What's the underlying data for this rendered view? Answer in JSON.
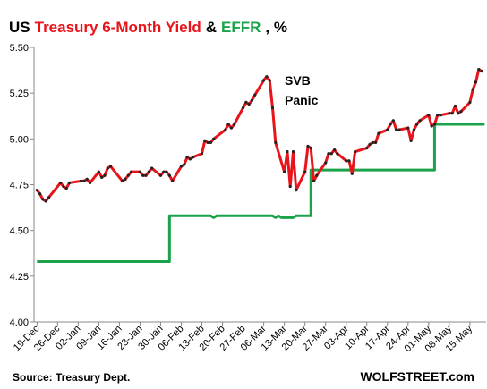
{
  "chart_data": {
    "type": "line",
    "title": [
      {
        "text": "US",
        "color": "#000000"
      },
      {
        "text": "Treasury 6-Month Yield",
        "color": "#e8141b"
      },
      {
        "text": "&",
        "color": "#000000"
      },
      {
        "text": "EFFR",
        "color": "#1aa34a"
      },
      {
        "text": ", %",
        "color": "#000000"
      }
    ],
    "annotations": {
      "event": [
        "SVB",
        "Panic"
      ],
      "source": "Source: Treasury Dept.",
      "credit": "WOLFSTREET.com"
    },
    "xlim": [
      -1,
      152.5
    ],
    "xticks": [
      {
        "value": 0,
        "label": "19-Dec"
      },
      {
        "value": 7,
        "label": "26-Dec"
      },
      {
        "value": 14,
        "label": "02-Jan"
      },
      {
        "value": 21,
        "label": "09-Jan"
      },
      {
        "value": 28,
        "label": "16-Jan"
      },
      {
        "value": 35,
        "label": "23-Jan"
      },
      {
        "value": 42,
        "label": "30-Jan"
      },
      {
        "value": 49,
        "label": "06-Feb"
      },
      {
        "value": 56,
        "label": "13-Feb"
      },
      {
        "value": 63,
        "label": "20-Feb"
      },
      {
        "value": 70,
        "label": "27-Feb"
      },
      {
        "value": 77,
        "label": "06-Mar"
      },
      {
        "value": 84,
        "label": "13-Mar"
      },
      {
        "value": 91,
        "label": "20-Mar"
      },
      {
        "value": 98,
        "label": "27-Mar"
      },
      {
        "value": 105,
        "label": "03-Apr"
      },
      {
        "value": 112,
        "label": "10-Apr"
      },
      {
        "value": 119,
        "label": "17-Apr"
      },
      {
        "value": 126,
        "label": "24-Apr"
      },
      {
        "value": 133,
        "label": "01-May"
      },
      {
        "value": 140,
        "label": "08-May"
      },
      {
        "value": 147,
        "label": "15-May"
      }
    ],
    "ylim": [
      4.0,
      5.5
    ],
    "yticks": [
      {
        "value": 4.0,
        "label": "4.00"
      },
      {
        "value": 4.25,
        "label": "4.25"
      },
      {
        "value": 4.5,
        "label": "4.50"
      },
      {
        "value": 4.75,
        "label": "4.75"
      },
      {
        "value": 5.0,
        "label": "5.00"
      },
      {
        "value": 5.25,
        "label": "5.25"
      },
      {
        "value": 5.5,
        "label": "5.50"
      }
    ],
    "grid": false,
    "series": [
      {
        "name": "EFFR",
        "color": "#1aa34a",
        "markers": false,
        "x": [
          0,
          45,
          45,
          59,
          60,
          61,
          80,
          81,
          82,
          83,
          87,
          88,
          93,
          93,
          135,
          135,
          152
        ],
        "values": [
          4.33,
          4.33,
          4.58,
          4.58,
          4.57,
          4.58,
          4.58,
          4.57,
          4.58,
          4.57,
          4.57,
          4.58,
          4.58,
          4.83,
          4.83,
          5.08,
          5.08
        ]
      },
      {
        "name": "Treasury 6-Month Yield",
        "color": "#e8141b",
        "markers": true,
        "x": [
          0,
          1,
          2,
          3,
          4,
          8,
          9,
          10,
          11,
          15,
          16,
          17,
          18,
          21,
          22,
          23,
          24,
          25,
          29,
          30,
          31,
          32,
          35,
          36,
          37,
          38,
          39,
          42,
          43,
          44,
          45,
          46,
          49,
          50,
          51,
          52,
          53,
          56,
          57,
          58,
          59,
          60,
          64,
          65,
          66,
          67,
          70,
          71,
          72,
          73,
          74,
          77,
          78,
          79,
          80,
          81,
          84,
          85,
          86,
          87,
          88,
          91,
          92,
          93,
          94,
          95,
          98,
          99,
          100,
          101,
          102,
          105,
          106,
          107,
          108,
          112,
          113,
          114,
          115,
          116,
          119,
          120,
          121,
          122,
          123,
          126,
          127,
          128,
          129,
          130,
          133,
          134,
          135,
          136,
          137,
          140,
          141,
          142,
          143,
          144,
          147,
          148,
          149,
          150,
          151
        ],
        "values": [
          4.72,
          4.7,
          4.67,
          4.66,
          4.68,
          4.76,
          4.74,
          4.73,
          4.76,
          4.77,
          4.77,
          4.78,
          4.76,
          4.82,
          4.79,
          4.8,
          4.84,
          4.85,
          4.77,
          4.78,
          4.8,
          4.82,
          4.82,
          4.8,
          4.8,
          4.82,
          4.84,
          4.8,
          4.82,
          4.82,
          4.8,
          4.77,
          4.85,
          4.86,
          4.9,
          4.89,
          4.9,
          4.92,
          4.99,
          4.98,
          4.98,
          5.0,
          5.05,
          5.08,
          5.06,
          5.08,
          5.17,
          5.2,
          5.19,
          5.21,
          5.24,
          5.32,
          5.34,
          5.32,
          5.17,
          4.98,
          4.82,
          4.93,
          4.74,
          4.93,
          4.72,
          4.82,
          4.96,
          4.95,
          4.77,
          4.8,
          4.87,
          4.92,
          4.92,
          4.94,
          4.92,
          4.88,
          4.88,
          4.81,
          4.93,
          4.95,
          4.97,
          4.98,
          4.98,
          5.03,
          5.05,
          5.08,
          5.1,
          5.05,
          5.05,
          5.06,
          4.99,
          5.05,
          5.08,
          5.1,
          5.13,
          5.07,
          5.08,
          5.13,
          5.13,
          5.14,
          5.14,
          5.18,
          5.14,
          5.15,
          5.2,
          5.27,
          5.31,
          5.38,
          5.37
        ]
      }
    ]
  }
}
